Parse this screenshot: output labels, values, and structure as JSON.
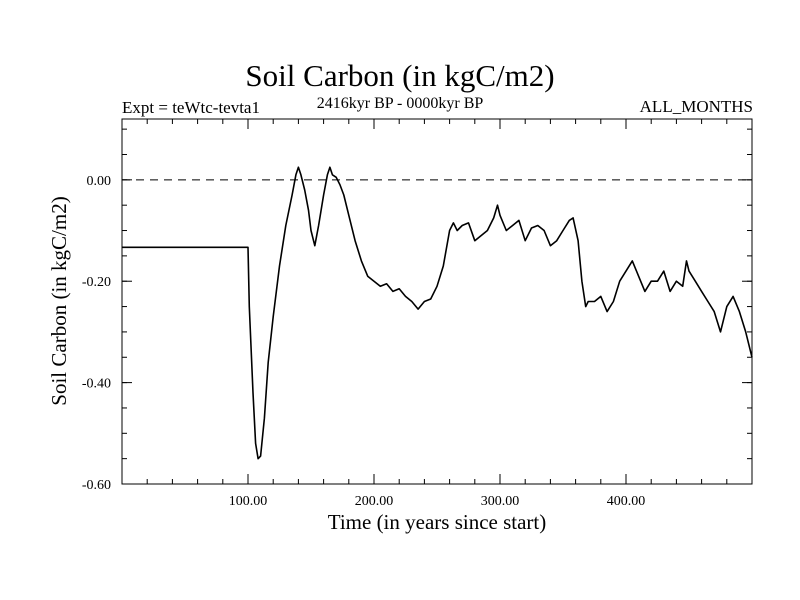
{
  "title": "Soil Carbon (in kgC/m2)",
  "expt_label": "Expt = teWtc-tevta1",
  "subtitle": "2416kyr BP - 0000kyr BP",
  "period_label": "ALL_MONTHS",
  "chart_data": {
    "type": "line",
    "xlabel": "Time (in years since start)",
    "ylabel": "Soil Carbon (in kgC/m2)",
    "xlim": [
      0,
      500
    ],
    "ylim": [
      -0.6,
      0.12
    ],
    "x_ticks": [
      100,
      200,
      300,
      400
    ],
    "x_tick_labels": [
      "100.00",
      "200.00",
      "300.00",
      "400.00"
    ],
    "y_ticks": [
      0,
      -0.2,
      -0.4,
      -0.6
    ],
    "y_tick_labels": [
      "0.00",
      "-0.20",
      "-0.40",
      "-0.60"
    ],
    "reference_line": {
      "y": 0,
      "style": "dashed"
    },
    "grid": false,
    "line_color": "#000000",
    "x": [
      0,
      100,
      101,
      104,
      106,
      108,
      110,
      113,
      116,
      120,
      125,
      130,
      135,
      138,
      140,
      142,
      145,
      148,
      150,
      153,
      156,
      160,
      163,
      165,
      167,
      170,
      173,
      176,
      180,
      185,
      190,
      195,
      200,
      205,
      210,
      215,
      220,
      225,
      230,
      235,
      240,
      245,
      250,
      255,
      260,
      263,
      266,
      270,
      275,
      280,
      285,
      290,
      295,
      298,
      300,
      305,
      310,
      315,
      320,
      325,
      330,
      335,
      340,
      345,
      350,
      355,
      358,
      362,
      365,
      368,
      370,
      375,
      380,
      385,
      390,
      395,
      400,
      405,
      410,
      415,
      420,
      425,
      430,
      435,
      440,
      445,
      448,
      450,
      455,
      460,
      465,
      470,
      475,
      480,
      485,
      490,
      495,
      500
    ],
    "y": [
      -0.133,
      -0.133,
      -0.25,
      -0.42,
      -0.52,
      -0.55,
      -0.545,
      -0.47,
      -0.36,
      -0.27,
      -0.17,
      -0.09,
      -0.03,
      0.01,
      0.025,
      0.01,
      -0.02,
      -0.06,
      -0.1,
      -0.13,
      -0.09,
      -0.03,
      0.01,
      0.025,
      0.01,
      0.005,
      -0.01,
      -0.03,
      -0.07,
      -0.12,
      -0.16,
      -0.19,
      -0.2,
      -0.21,
      -0.205,
      -0.22,
      -0.215,
      -0.23,
      -0.24,
      -0.255,
      -0.24,
      -0.235,
      -0.21,
      -0.17,
      -0.1,
      -0.085,
      -0.1,
      -0.09,
      -0.085,
      -0.12,
      -0.11,
      -0.1,
      -0.075,
      -0.05,
      -0.07,
      -0.1,
      -0.09,
      -0.08,
      -0.12,
      -0.095,
      -0.09,
      -0.1,
      -0.13,
      -0.12,
      -0.1,
      -0.08,
      -0.075,
      -0.12,
      -0.2,
      -0.25,
      -0.24,
      -0.24,
      -0.23,
      -0.26,
      -0.24,
      -0.2,
      -0.18,
      -0.16,
      -0.19,
      -0.22,
      -0.2,
      -0.2,
      -0.18,
      -0.22,
      -0.2,
      -0.21,
      -0.16,
      -0.18,
      -0.2,
      -0.22,
      -0.24,
      -0.26,
      -0.3,
      -0.25,
      -0.23,
      -0.26,
      -0.3,
      -0.35
    ]
  }
}
